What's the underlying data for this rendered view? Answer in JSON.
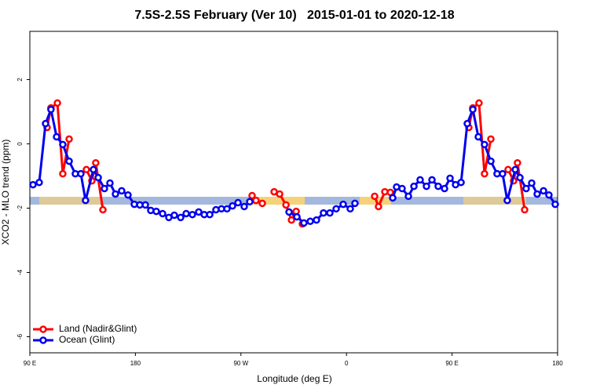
{
  "chart_data": {
    "type": "line",
    "title": "7.5S-2.5S February (Ver 10)   2015-01-01 to 2020-12-18",
    "x_label": "Longitude (deg E)",
    "y_label": "XCO2 - MLO trend (ppm)",
    "xlim": [
      90,
      540
    ],
    "ylim": [
      -6.5,
      3.5
    ],
    "xticks": [
      {
        "value": 90,
        "label": "90 E"
      },
      180,
      {
        "value": 270,
        "label": "90 W"
      },
      {
        "value": 360,
        "label": "0"
      },
      {
        "value": 450,
        "label": "90 E"
      },
      {
        "value": 540,
        "label": "180"
      }
    ],
    "yticks": [
      -6,
      -4,
      -2,
      0,
      2
    ],
    "legend": "bottom-left",
    "series": [
      {
        "name": "Land (Nadir&Glint)",
        "color": "#ff0000",
        "x": [
          104.7,
          108,
          113.5,
          118.1,
          123.5,
          null,
          138.2,
          142.9,
          146.2,
          152.3,
          null,
          279.5,
          282.8,
          288.2,
          null,
          298.3,
          303,
          308.4,
          313.1,
          317.1,
          322.4,
          null,
          384,
          387.3,
          392.7,
          397.4,
          null,
          464.3,
          467.7,
          473,
          477.7,
          483.1,
          null,
          497.8,
          502.5,
          505.8,
          511.9
        ],
        "values": [
          0.51,
          1.12,
          1.27,
          -0.93,
          0.15,
          null,
          -0.8,
          -1.15,
          -0.59,
          -2.05,
          null,
          -1.61,
          -1.76,
          -1.85,
          null,
          -1.49,
          -1.56,
          -1.9,
          -2.37,
          -2.1,
          -2.49,
          null,
          -1.63,
          -1.95,
          -1.49,
          -1.51,
          null,
          0.51,
          1.12,
          1.27,
          -0.93,
          0.15,
          null,
          -0.8,
          -1.15,
          -0.59,
          -2.05
        ]
      },
      {
        "name": "Ocean (Glint)",
        "color": "#0000ee",
        "x": [
          92.7,
          98,
          103.4,
          108,
          112.8,
          118.1,
          123.5,
          128.8,
          133.5,
          137.5,
          144.2,
          148.3,
          153.6,
          158.3,
          163,
          168.3,
          173.7,
          179.1,
          183.8,
          188.5,
          193.1,
          197.8,
          203.2,
          208.5,
          213.2,
          218.6,
          223.3,
          228.6,
          234,
          238.7,
          243.4,
          248.7,
          253.4,
          258.1,
          262.8,
          267.5,
          272.8,
          277.5,
          null,
          311,
          317.7,
          323.7,
          329.1,
          334.4,
          340.4,
          345.8,
          351.2,
          357.2,
          363.2,
          367.2,
          null,
          399.4,
          402.7,
          407.4,
          412.8,
          417.5,
          422.8,
          428.2,
          432.9,
          438.2,
          443.6,
          448.3,
          453,
          457.7,
          463,
          467.7,
          472.4,
          477.7,
          483.1,
          488.4,
          493.1,
          497.1,
          503.9,
          507.9,
          513.2,
          517.9,
          522.6,
          528,
          532.6,
          538
        ],
        "values": [
          -1.27,
          -1.2,
          0.63,
          1.07,
          0.22,
          -0.02,
          -0.54,
          -0.93,
          -0.93,
          -1.76,
          -0.8,
          -1.05,
          -1.39,
          -1.22,
          -1.56,
          -1.46,
          -1.59,
          -1.88,
          -1.9,
          -1.9,
          -2.07,
          -2.1,
          -2.17,
          -2.29,
          -2.22,
          -2.29,
          -2.17,
          -2.2,
          -2.12,
          -2.2,
          -2.2,
          -2.05,
          -2.02,
          -2.02,
          -1.93,
          -1.83,
          -1.95,
          -1.8,
          null,
          -2.12,
          -2.27,
          -2.46,
          -2.41,
          -2.37,
          -2.15,
          -2.15,
          -2.02,
          -1.88,
          -2.02,
          -1.85,
          null,
          -1.68,
          -1.34,
          -1.39,
          -1.63,
          -1.32,
          -1.12,
          -1.32,
          -1.12,
          -1.32,
          -1.39,
          -1.07,
          -1.27,
          -1.2,
          0.63,
          1.07,
          0.22,
          -0.02,
          -0.54,
          -0.93,
          -0.93,
          -1.76,
          -0.8,
          -1.05,
          -1.39,
          -1.22,
          -1.56,
          -1.46,
          -1.59,
          -1.88
        ]
      }
    ]
  }
}
